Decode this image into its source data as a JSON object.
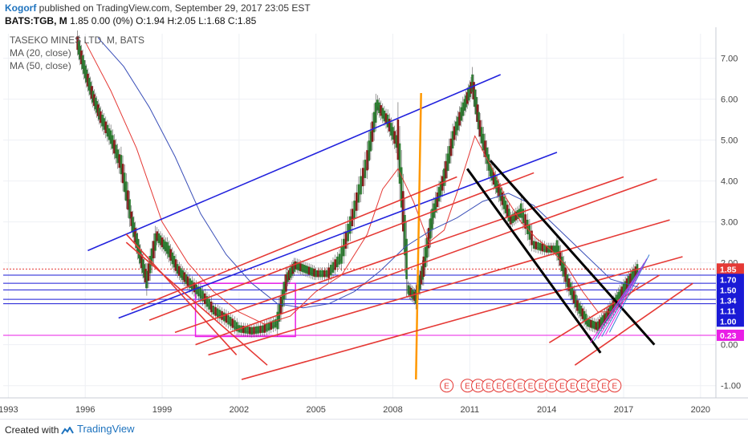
{
  "header": {
    "author": "Kogorf",
    "published": "published on TradingView.com, September 29, 2017 23:05 EST",
    "symbol_line": "BATS:TGB, M",
    "ohlc": "1.85 0.00 (0%) O:1.94 H:2.05 L:1.68 C:1.85"
  },
  "legend": {
    "title": "TASEKO MINES LTD, M, BATS",
    "ma20": "MA (20, close)",
    "ma50": "MA (50, close)"
  },
  "footer": {
    "created": "Created with",
    "brand": "TradingView"
  },
  "chart_data": {
    "type": "line",
    "title": "TASEKO MINES LTD, M, BATS",
    "xlabel": "",
    "ylabel": "",
    "x_ticks": [
      "1993",
      "1996",
      "1999",
      "2002",
      "2005",
      "2008",
      "2011",
      "2014",
      "2017",
      "2020"
    ],
    "y_ticks": [
      "7.00",
      "6.00",
      "5.00",
      "4.00",
      "3.00",
      "2.00",
      "1.00",
      "0.00",
      "-1.00"
    ],
    "ylim": [
      -1.3,
      7.6
    ],
    "xlim": [
      1992.8,
      2020.6
    ],
    "price_labels": [
      {
        "text": "1.85",
        "value": 1.85,
        "color": "#e53935"
      },
      {
        "text": "1.70",
        "value": 1.7,
        "color": "#1a1ad6"
      },
      {
        "text": "1.50",
        "value": 1.5,
        "color": "#1a1ad6"
      },
      {
        "text": "1.34",
        "value": 1.34,
        "color": "#1a1ad6"
      },
      {
        "text": "1.11",
        "value": 1.11,
        "color": "#1a1ad6"
      },
      {
        "text": "1.00",
        "value": 1.0,
        "color": "#1a1ad6"
      },
      {
        "text": "0.23",
        "value": 0.23,
        "color": "#e91ee6"
      }
    ],
    "series": [
      {
        "x": [
          1995.7,
          1996.0,
          1996.3,
          1996.6,
          1997.0,
          1997.4,
          1997.8,
          1998.1,
          1998.4,
          1998.8,
          1999.2,
          1999.6,
          2000.0,
          2000.5,
          2001.0,
          2001.5,
          2002.0,
          2002.5,
          2003.0,
          2003.5,
          2003.9,
          2004.2,
          2004.6,
          2005.0,
          2005.5,
          2006.0,
          2006.5,
          2007.0,
          2007.4,
          2007.8,
          2008.2,
          2008.6,
          2008.9,
          2009.2,
          2009.6,
          2010.0,
          2010.4,
          2010.8,
          2011.1,
          2011.4,
          2011.8,
          2012.2,
          2012.6,
          2013.0,
          2013.5,
          2014.0,
          2014.4,
          2014.8,
          2015.2,
          2015.6,
          2016.0,
          2016.4,
          2016.8,
          2017.2,
          2017.6
        ],
        "y": [
          7.3,
          6.6,
          6.0,
          5.5,
          5.0,
          4.3,
          3.0,
          2.2,
          1.5,
          2.6,
          2.3,
          1.8,
          1.5,
          1.2,
          0.8,
          0.6,
          0.35,
          0.3,
          0.35,
          0.5,
          1.6,
          1.9,
          1.8,
          1.7,
          1.7,
          2.1,
          3.2,
          4.4,
          5.8,
          5.4,
          4.8,
          1.3,
          1.1,
          1.8,
          3.2,
          4.0,
          5.1,
          5.8,
          6.3,
          5.2,
          4.2,
          3.6,
          3.0,
          3.2,
          2.4,
          2.3,
          2.3,
          1.5,
          0.9,
          0.5,
          0.4,
          0.7,
          1.1,
          1.5,
          1.85
        ]
      },
      {
        "name": "MA (20, close)",
        "x": [
          1996.0,
          1997.0,
          1998.0,
          1999.0,
          2000.0,
          2001.0,
          2002.0,
          2003.0,
          2004.0,
          2005.0,
          2006.0,
          2007.0,
          2007.6,
          2008.2,
          2008.8,
          2009.4,
          2010.0,
          2010.6,
          2011.2,
          2011.8,
          2012.4,
          2013.0,
          2013.6,
          2014.2,
          2014.8,
          2015.4,
          2016.0,
          2016.6,
          2017.2,
          2017.6
        ],
        "y": [
          7.4,
          6.2,
          4.8,
          3.0,
          2.0,
          1.3,
          0.8,
          0.5,
          0.7,
          1.3,
          1.7,
          2.7,
          3.8,
          4.3,
          3.5,
          2.5,
          2.8,
          3.9,
          5.1,
          4.4,
          3.6,
          3.0,
          2.6,
          2.3,
          1.9,
          1.3,
          0.8,
          0.8,
          1.2,
          1.5
        ]
      },
      {
        "name": "MA (50, close)",
        "x": [
          1996.5,
          1997.5,
          1998.5,
          1999.5,
          2000.5,
          2001.5,
          2002.5,
          2003.5,
          2004.5,
          2005.5,
          2006.5,
          2007.5,
          2008.5,
          2009.5,
          2010.5,
          2011.5,
          2012.5,
          2013.5,
          2014.5,
          2015.5,
          2016.5,
          2017.6
        ],
        "y": [
          7.5,
          6.8,
          5.8,
          4.6,
          3.2,
          2.2,
          1.5,
          1.0,
          0.9,
          1.0,
          1.3,
          1.8,
          2.4,
          2.8,
          3.1,
          3.5,
          3.7,
          3.4,
          2.8,
          2.2,
          1.6,
          1.4
        ]
      }
    ],
    "drawings": [
      {
        "kind": "line",
        "color": "#2222dd",
        "x": [
          1996.1,
          2012.2
        ],
        "y": [
          2.3,
          6.6
        ]
      },
      {
        "kind": "line",
        "color": "#2222dd",
        "x": [
          1997.3,
          2014.4
        ],
        "y": [
          0.65,
          4.7
        ]
      },
      {
        "kind": "line",
        "color": "#ff9800",
        "x": [
          2008.9,
          2009.1
        ],
        "y": [
          -0.85,
          6.15
        ]
      },
      {
        "kind": "line",
        "color": "#e53935",
        "x": [
          2002.1,
          2019.3
        ],
        "y": [
          -0.85,
          2.15
        ]
      },
      {
        "kind": "line",
        "color": "#e53935",
        "x": [
          2000.8,
          2018.8
        ],
        "y": [
          -0.25,
          3.05
        ]
      },
      {
        "kind": "line",
        "color": "#e53935",
        "x": [
          2000.3,
          2018.3
        ],
        "y": [
          0.0,
          4.05
        ]
      },
      {
        "kind": "line",
        "color": "#e53935",
        "x": [
          1999.5,
          2017.0
        ],
        "y": [
          0.3,
          4.1
        ]
      },
      {
        "kind": "line",
        "color": "#e53935",
        "x": [
          1998.5,
          2013.5
        ],
        "y": [
          0.6,
          4.2
        ]
      },
      {
        "kind": "line",
        "color": "#e53935",
        "x": [
          1997.8,
          2010.5
        ],
        "y": [
          0.85,
          4.1
        ]
      },
      {
        "kind": "line",
        "color": "#e53935",
        "x": [
          2014.1,
          2018.4
        ],
        "y": [
          0.05,
          1.7
        ]
      },
      {
        "kind": "line",
        "color": "#e53935",
        "x": [
          2015.1,
          2019.7
        ],
        "y": [
          -0.5,
          1.5
        ]
      },
      {
        "kind": "line",
        "color": "#e53935",
        "x": [
          1997.6,
          2001.9
        ],
        "y": [
          2.7,
          -0.25
        ]
      },
      {
        "kind": "line",
        "color": "#e53935",
        "x": [
          1997.6,
          2003.1
        ],
        "y": [
          2.5,
          -0.5
        ]
      },
      {
        "kind": "line",
        "color": "#000000",
        "x": [
          2010.9,
          2016.1
        ],
        "y": [
          4.3,
          -0.2
        ]
      },
      {
        "kind": "line",
        "color": "#000000",
        "x": [
          2011.8,
          2018.2
        ],
        "y": [
          4.5,
          0.0
        ]
      },
      {
        "kind": "rect",
        "color": "#e91ee6",
        "x": [
          2000.3,
          2004.2
        ],
        "y": [
          1.5,
          0.2
        ]
      }
    ],
    "hlines": [
      {
        "value": 1.85,
        "color": "#e53935",
        "style": "dotted"
      },
      {
        "value": 1.7,
        "color": "#1a1ad6"
      },
      {
        "value": 1.5,
        "color": "#1a1ad6"
      },
      {
        "value": 1.34,
        "color": "#1a1ad6"
      },
      {
        "value": 1.11,
        "color": "#1a1ad6"
      },
      {
        "value": 1.0,
        "color": "#1a1ad6"
      },
      {
        "value": 0.23,
        "color": "#e91ee6"
      }
    ],
    "earnings_marker_count": 16,
    "earnings_marker_label": "E",
    "grid": true
  }
}
